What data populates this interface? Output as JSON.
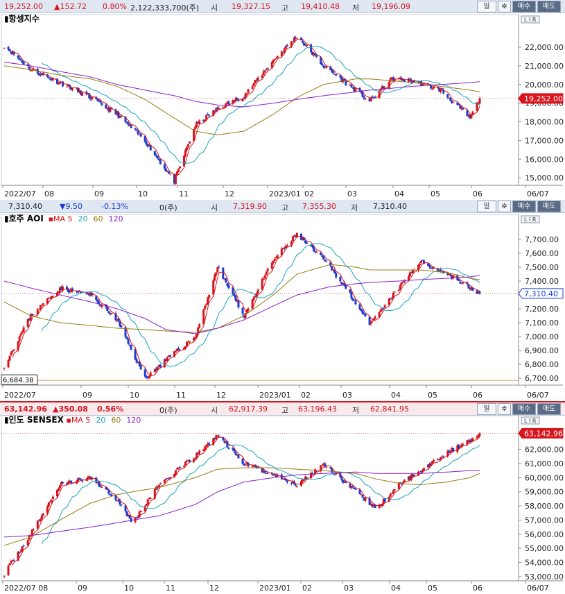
{
  "colors": {
    "up": "#d8141c",
    "down": "#1a3cd0",
    "ma5": "#d8141c",
    "ma20": "#17a2c2",
    "ma60": "#9a7a10",
    "ma120": "#8a1ec8"
  },
  "panels": [
    {
      "id": "hangseng",
      "header": {
        "price": "19,252.00",
        "change": "▲152.72",
        "pct": "0.80%",
        "volume": "2,122,333,700(주)",
        "open_label": "시",
        "open": "19,327.15",
        "high_label": "고",
        "high": "19,410.48",
        "low_label": "저",
        "low": "19,196.09"
      },
      "buttons": {
        "period": "일",
        "gear": "✲",
        "buy": "매수",
        "sell": "매도"
      },
      "chart_data": {
        "type": "candlestick",
        "title": "항셍지수",
        "legend": [],
        "yticks": [
          "22,000.00",
          "21,000.00",
          "20,000.00",
          "19,000.00",
          "18,000.00",
          "17,000.00",
          "16,000.00",
          "15,000.00"
        ],
        "ylim": [
          14600,
          23300
        ],
        "last_label": "19,252.00",
        "xticks": [
          "2022/07",
          "08",
          "09",
          "10",
          "11",
          "12",
          "2023/01",
          "02",
          "03",
          "04",
          "05",
          "06",
          "06/07"
        ],
        "close_anchor_x": [
          "2022-07-01",
          "2022-07-20",
          "2022-08-10",
          "2022-09-01",
          "2022-09-20",
          "2022-10-10",
          "2022-10-31",
          "2022-11-15",
          "2022-12-01",
          "2022-12-20",
          "2023-01-10",
          "2023-01-27",
          "2023-02-15",
          "2023-03-10",
          "2023-03-20",
          "2023-04-05",
          "2023-04-20",
          "2023-05-10",
          "2023-05-31",
          "2023-06-07"
        ],
        "close_anchor_y": [
          22100,
          20800,
          20100,
          19300,
          18400,
          17000,
          14800,
          17800,
          18700,
          19400,
          21300,
          22600,
          21000,
          19700,
          19100,
          20300,
          20200,
          19700,
          18200,
          19252
        ],
        "ma120_anchor_y": [
          21200,
          21000,
          20700,
          20400,
          20000,
          19700,
          19400,
          19100,
          18900,
          18800,
          19000,
          19200,
          19400,
          19600,
          19700,
          19800,
          19900,
          20000,
          20100,
          20150
        ],
        "ma60_anchor_y": [
          21000,
          20800,
          20500,
          20300,
          19900,
          19200,
          18200,
          17500,
          17300,
          17500,
          18400,
          19300,
          20000,
          20300,
          20300,
          20200,
          20100,
          19900,
          19700,
          19600
        ]
      }
    },
    {
      "id": "aoi",
      "header": {
        "price": "7,310.40",
        "change": "▼9.50",
        "pct": "-0.13%",
        "volume": "0(주)",
        "open_label": "시",
        "open": "7,319.90",
        "high_label": "고",
        "high": "7,355.30",
        "low_label": "저",
        "low": "7,310.40"
      },
      "buttons": {
        "period": "일",
        "gear": "✲",
        "buy": "매수",
        "sell": "매도"
      },
      "chart_data": {
        "type": "candlestick",
        "title": "호주 AOI",
        "legend": [
          {
            "name": "MA",
            "color": "#d8141c"
          },
          {
            "name": "5",
            "color": "#d8141c"
          },
          {
            "name": "20",
            "color": "#17a2c2"
          },
          {
            "name": "60",
            "color": "#9a7a10"
          },
          {
            "name": "120",
            "color": "#8a1ec8"
          }
        ],
        "yticks": [
          "7,700.00",
          "7,600.00",
          "7,500.00",
          "7,400.00",
          "7,300.00",
          "7,200.00",
          "7,100.00",
          "7,000.00",
          "6,900.00",
          "6,800.00",
          "6,700.00"
        ],
        "ylim": [
          6650,
          7820
        ],
        "last_label": "7,310.40",
        "min_label": "6,684.38",
        "xticks": [
          "2022/07",
          "09",
          "10",
          "11",
          "12",
          "2023/01",
          "02",
          "03",
          "04",
          "05",
          "06",
          "06/07"
        ],
        "close_anchor_x": [
          "2022-07-01",
          "2022-07-20",
          "2022-08-10",
          "2022-09-01",
          "2022-09-20",
          "2022-10-10",
          "2022-10-25",
          "2022-11-15",
          "2022-12-01",
          "2022-12-20",
          "2023-01-10",
          "2023-01-27",
          "2023-02-20",
          "2023-03-10",
          "2023-03-20",
          "2023-04-10",
          "2023-04-25",
          "2023-05-15",
          "2023-05-31",
          "2023-06-07"
        ],
        "close_anchor_y": [
          6790,
          7150,
          7350,
          7300,
          7120,
          6700,
          6830,
          7000,
          7500,
          7150,
          7550,
          7740,
          7500,
          7250,
          7080,
          7350,
          7540,
          7450,
          7350,
          7310
        ],
        "ma120_anchor_y": [
          7400,
          7350,
          7300,
          7250,
          7200,
          7130,
          7050,
          7020,
          7060,
          7120,
          7220,
          7300,
          7360,
          7380,
          7390,
          7400,
          7410,
          7420,
          7430,
          7440
        ],
        "ma60_anchor_y": [
          7250,
          7150,
          7100,
          7080,
          7060,
          7050,
          7040,
          7030,
          7060,
          7150,
          7300,
          7450,
          7520,
          7500,
          7480,
          7480,
          7480,
          7460,
          7420,
          7410
        ]
      }
    },
    {
      "id": "sensex",
      "header": {
        "price": "63,142.96",
        "change": "▲350.08",
        "pct": "0.56%",
        "volume": "0(주)",
        "open_label": "시",
        "open": "62,917.39",
        "high_label": "고",
        "high": "63,196.43",
        "low_label": "저",
        "low": "62,841.95"
      },
      "buttons": {
        "period": "일",
        "gear": "✲",
        "buy": "매수",
        "sell": "매도"
      },
      "chart_data": {
        "type": "candlestick",
        "title": "인도 SENSEX",
        "legend": [
          {
            "name": "MA",
            "color": "#d8141c"
          },
          {
            "name": "5",
            "color": "#d8141c"
          },
          {
            "name": "20",
            "color": "#17a2c2"
          },
          {
            "name": "60",
            "color": "#9a7a10"
          },
          {
            "name": "120",
            "color": "#8a1ec8"
          }
        ],
        "yticks": [
          "62,000.00",
          "61,000.00",
          "60,000.00",
          "59,000.00",
          "58,000.00",
          "57,000.00",
          "56,000.00",
          "55,000.00",
          "54,000.00",
          "53,000.00"
        ],
        "ylim": [
          52700,
          63800
        ],
        "last_label": "63,142.96",
        "xticks": [
          "2022/07 08",
          "09",
          "10",
          "11",
          "12",
          "2023/01",
          "02",
          "03",
          "04",
          "05",
          "06",
          "06/07"
        ],
        "close_anchor_x": [
          "2022-07-01",
          "2022-07-20",
          "2022-08-10",
          "2022-09-01",
          "2022-09-20",
          "2022-10-01",
          "2022-10-20",
          "2022-11-15",
          "2022-12-01",
          "2022-12-20",
          "2023-01-10",
          "2023-01-27",
          "2023-02-15",
          "2023-03-10",
          "2023-03-25",
          "2023-04-10",
          "2023-04-25",
          "2023-05-15",
          "2023-05-31",
          "2023-06-07"
        ],
        "close_anchor_y": [
          53200,
          56000,
          59500,
          60000,
          58500,
          56800,
          59500,
          61500,
          63000,
          61000,
          60200,
          59500,
          61000,
          59000,
          57800,
          59500,
          60500,
          61800,
          62600,
          63143
        ],
        "ma120_anchor_y": [
          55800,
          55900,
          56200,
          56500,
          56800,
          57000,
          57300,
          58100,
          59000,
          59700,
          60000,
          60200,
          60300,
          60400,
          60300,
          60300,
          60300,
          60400,
          60500,
          60500
        ],
        "ma60_anchor_y": [
          55200,
          55800,
          57000,
          58200,
          58800,
          59000,
          59300,
          60000,
          60600,
          60700,
          60700,
          60600,
          60500,
          60300,
          59900,
          59600,
          59500,
          59700,
          60000,
          60300
        ]
      }
    }
  ]
}
